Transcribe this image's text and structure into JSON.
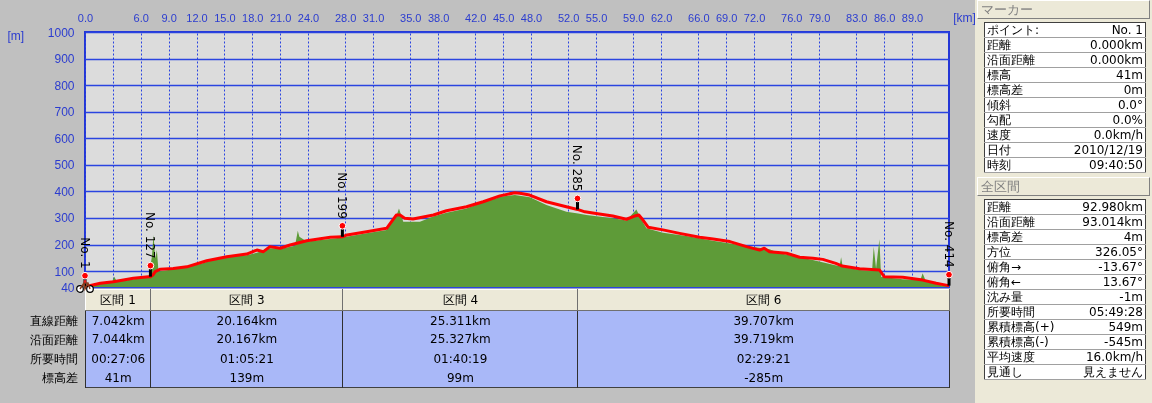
{
  "chart_data": [
    {
      "type": "area",
      "xlabel": "[km]",
      "ylabel": "[m]",
      "xlim": [
        0,
        92.98
      ],
      "ylim": [
        40,
        1000
      ],
      "xticks": [
        {
          "value": 0,
          "label": "0.0"
        },
        {
          "value": 3,
          "label": null
        },
        {
          "value": 6,
          "label": "6.0"
        },
        {
          "value": 9,
          "label": "9.0"
        },
        {
          "value": 12,
          "label": "12.0"
        },
        {
          "value": 15,
          "label": "15.0"
        },
        {
          "value": 18,
          "label": "18.0"
        },
        {
          "value": 21,
          "label": "21.0"
        },
        {
          "value": 24,
          "label": "24.0"
        },
        {
          "value": 28,
          "label": "28.0"
        },
        {
          "value": 31,
          "label": "31.0"
        },
        {
          "value": 35,
          "label": "35.0"
        },
        {
          "value": 38,
          "label": "38.0"
        },
        {
          "value": 42,
          "label": "42.0"
        },
        {
          "value": 45,
          "label": "45.0"
        },
        {
          "value": 48,
          "label": "48.0"
        },
        {
          "value": 52,
          "label": "52.0"
        },
        {
          "value": 55,
          "label": "55.0"
        },
        {
          "value": 59,
          "label": "59.0"
        },
        {
          "value": 62,
          "label": "62.0"
        },
        {
          "value": 66,
          "label": "66.0"
        },
        {
          "value": 69,
          "label": "69.0"
        },
        {
          "value": 72,
          "label": "72.0"
        },
        {
          "value": 76,
          "label": "76.0"
        },
        {
          "value": 79,
          "label": "79.0"
        },
        {
          "value": 83,
          "label": "83.0"
        },
        {
          "value": 86,
          "label": "86.0"
        },
        {
          "value": 89,
          "label": "89.0"
        }
      ],
      "yticks": [
        40,
        100,
        200,
        300,
        400,
        500,
        600,
        700,
        800,
        900,
        1000
      ],
      "grid": true,
      "series": [
        {
          "type": "area",
          "color": "#5e9b38",
          "x": [
            0,
            1.64,
            2.9,
            3.15,
            3.44,
            5.22,
            6.84,
            7.2,
            7.37,
            7.56,
            7.74,
            7.91,
            9.52,
            12.39,
            15.26,
            17.41,
            18.49,
            19.92,
            21.35,
            22.6,
            22.9,
            23.07,
            23.86,
            26.37,
            28.16,
            30.31,
            32.46,
            33.54,
            33.79,
            34.25,
            36.04,
            37.47,
            38.91,
            41.06,
            43.21,
            44.29,
            44.65,
            46.26,
            47.88,
            49.66,
            51.81,
            53.06,
            53.96,
            56.82,
            58.26,
            59.34,
            59.69,
            60.41,
            62.2,
            64.71,
            67.57,
            71.16,
            72.94,
            73.66,
            74.74,
            76.89,
            78.32,
            81.2,
            81.37,
            81.54,
            83.34,
            84.7,
            84.88,
            85.13,
            85.49,
            85.67,
            87.99,
            89.9,
            90.14,
            90.51,
            92.66,
            92.98
          ],
          "values": [
            41,
            51,
            60,
            79,
            60,
            69,
            77,
            154,
            236,
            148,
            179,
            98,
            107,
            127,
            158,
            160,
            169,
            186,
            186,
            195,
            252,
            229,
            211,
            221,
            229,
            242,
            255,
            311,
            336,
            286,
            286,
            305,
            320,
            336,
            365,
            374,
            380,
            386,
            378,
            349,
            323,
            317,
            311,
            299,
            290,
            332,
            305,
            261,
            244,
            232,
            214,
            194,
            186,
            182,
            167,
            152,
            142,
            118,
            152,
            116,
            104,
            100,
            192,
            110,
            220,
            79,
            69,
            66,
            92,
            60,
            43,
            43
          ]
        },
        {
          "type": "line",
          "color": "#ff0000",
          "x": [
            0,
            1.64,
            3.07,
            5.2,
            6.84,
            7.04,
            7.3,
            7.56,
            8.1,
            9.5,
            10.96,
            13.1,
            15.26,
            17.4,
            18.5,
            19.2,
            19.9,
            21.0,
            22.07,
            23.86,
            26.4,
            27.7,
            28.2,
            30.3,
            32.46,
            33.5,
            33.9,
            34.4,
            35.3,
            37.5,
            38.9,
            41.06,
            42.85,
            44.65,
            46.25,
            46.8,
            47.85,
            49.66,
            51.8,
            53.0,
            53.8,
            55.0,
            56.8,
            58.26,
            59.15,
            59.6,
            60.05,
            60.6,
            62.2,
            63.99,
            66.15,
            67.6,
            69.4,
            71.2,
            72.6,
            73.1,
            73.66,
            75.5,
            76.9,
            78.34,
            79.4,
            80.8,
            81.5,
            83.35,
            85.5,
            86.0,
            88.0,
            90.15,
            91.6,
            92.66,
            92.98
          ],
          "values": [
            41,
            54,
            60,
            73,
            79,
            79,
            85,
            98,
            107,
            110,
            116,
            139,
            154,
            164,
            179,
            173,
            192,
            186,
            198,
            214,
            227,
            229,
            236,
            248,
            261,
            311,
            311,
            299,
            296,
            311,
            327,
            342,
            361,
            383,
            395,
            393,
            386,
            361,
            342,
            332,
            323,
            317,
            307,
            295,
            307,
            311,
            292,
            265,
            255,
            242,
            227,
            221,
            211,
            192,
            179,
            186,
            173,
            167,
            152,
            148,
            144,
            129,
            119,
            109,
            104,
            79,
            77,
            66,
            54,
            47,
            45
          ]
        }
      ],
      "annotations": [
        {
          "text": "No. 1",
          "x": 0,
          "y": 41
        },
        {
          "text": "No. 127",
          "x": 7.04,
          "y": 79
        },
        {
          "text": "No. 199",
          "x": 27.7,
          "y": 229
        },
        {
          "text": "No. 285",
          "x": 53.0,
          "y": 332
        },
        {
          "text": "No. 414",
          "x": 92.98,
          "y": 45
        }
      ]
    },
    {
      "type": "other",
      "categories": [
        "区間 1",
        "区間 3",
        "区間 4",
        "区間 6"
      ],
      "y_categories": [
        "直線距離",
        "沿面距離",
        "所要時間",
        "標高差"
      ],
      "cell_labels": [
        [
          "7.042km",
          "20.164km",
          "25.311km",
          "39.707km"
        ],
        [
          "7.044km",
          "20.167km",
          "25.327km",
          "39.719km"
        ],
        [
          "00:27:06",
          "01:05:21",
          "01:40:19",
          "02:29:21"
        ],
        [
          "41m",
          "139m",
          "99m",
          "-285m"
        ]
      ]
    },
    {
      "type": "other",
      "title": "マーカー",
      "y_categories": [
        "ポイント:",
        "距離",
        "沿面距離",
        "標高",
        "標高差",
        "傾斜",
        "勾配",
        "速度",
        "日付",
        "時刻"
      ],
      "cell_labels": [
        [
          "No. 1"
        ],
        [
          "0.000km"
        ],
        [
          "0.000km"
        ],
        [
          "41m"
        ],
        [
          "0m"
        ],
        [
          "0.0°"
        ],
        [
          "0.0%"
        ],
        [
          "0.0km/h"
        ],
        [
          "2010/12/19"
        ],
        [
          "09:40:50"
        ]
      ]
    },
    {
      "type": "other",
      "title": "全区間",
      "y_categories": [
        "距離",
        "沿面距離",
        "標高差",
        "方位",
        "俯角→",
        "俯角←",
        "沈み量",
        "所要時間",
        "累積標高(+)",
        "累積標高(-)",
        "平均速度",
        "見通し"
      ],
      "cell_labels": [
        [
          "92.980km"
        ],
        [
          "93.014km"
        ],
        [
          "4m"
        ],
        [
          "326.05°"
        ],
        [
          "-13.67°"
        ],
        [
          "13.67°"
        ],
        [
          "-1m"
        ],
        [
          "05:49:28"
        ],
        [
          "549m"
        ],
        [
          "-545m"
        ],
        [
          "16.0km/h"
        ],
        [
          "見えません"
        ]
      ]
    }
  ]
}
